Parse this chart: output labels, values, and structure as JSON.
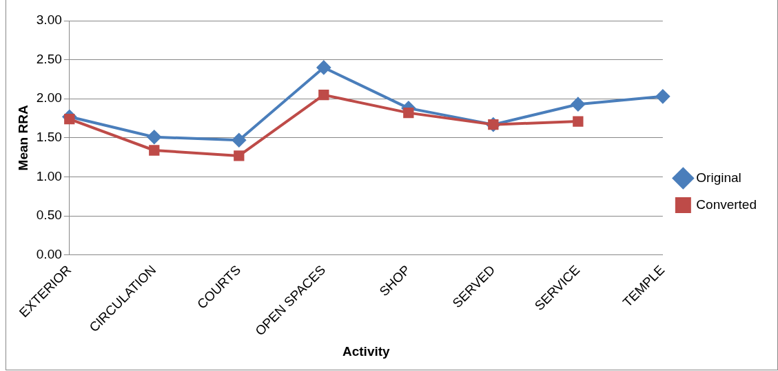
{
  "chart_data": {
    "type": "line",
    "xlabel": "Activity",
    "ylabel": "Mean RRA",
    "categories": [
      "EXTERIOR",
      "CIRCULATION",
      "COURTS",
      "OPEN SPACES",
      "SHOP",
      "SERVED",
      "SERVICE",
      "TEMPLE"
    ],
    "series": [
      {
        "name": "Original",
        "color": "#4a7ebb",
        "marker": "diamond",
        "values": [
          1.77,
          1.51,
          1.47,
          2.4,
          1.88,
          1.67,
          1.93,
          2.03
        ]
      },
      {
        "name": "Converted",
        "color": "#be4b48",
        "marker": "square",
        "values": [
          1.74,
          1.34,
          1.27,
          2.05,
          1.82,
          1.67,
          1.71,
          null
        ]
      }
    ],
    "ylim": [
      0,
      3
    ],
    "yticks": [
      {
        "value": 0,
        "label": "0.00"
      },
      {
        "value": 0.5,
        "label": "0.50"
      },
      {
        "value": 1,
        "label": "1.00"
      },
      {
        "value": 1.5,
        "label": "1.50"
      },
      {
        "value": 2,
        "label": "2.00"
      },
      {
        "value": 2.5,
        "label": "2.50"
      },
      {
        "value": 3,
        "label": "3.00"
      }
    ],
    "grid": "y",
    "legend": "right",
    "line_style": "solid"
  }
}
